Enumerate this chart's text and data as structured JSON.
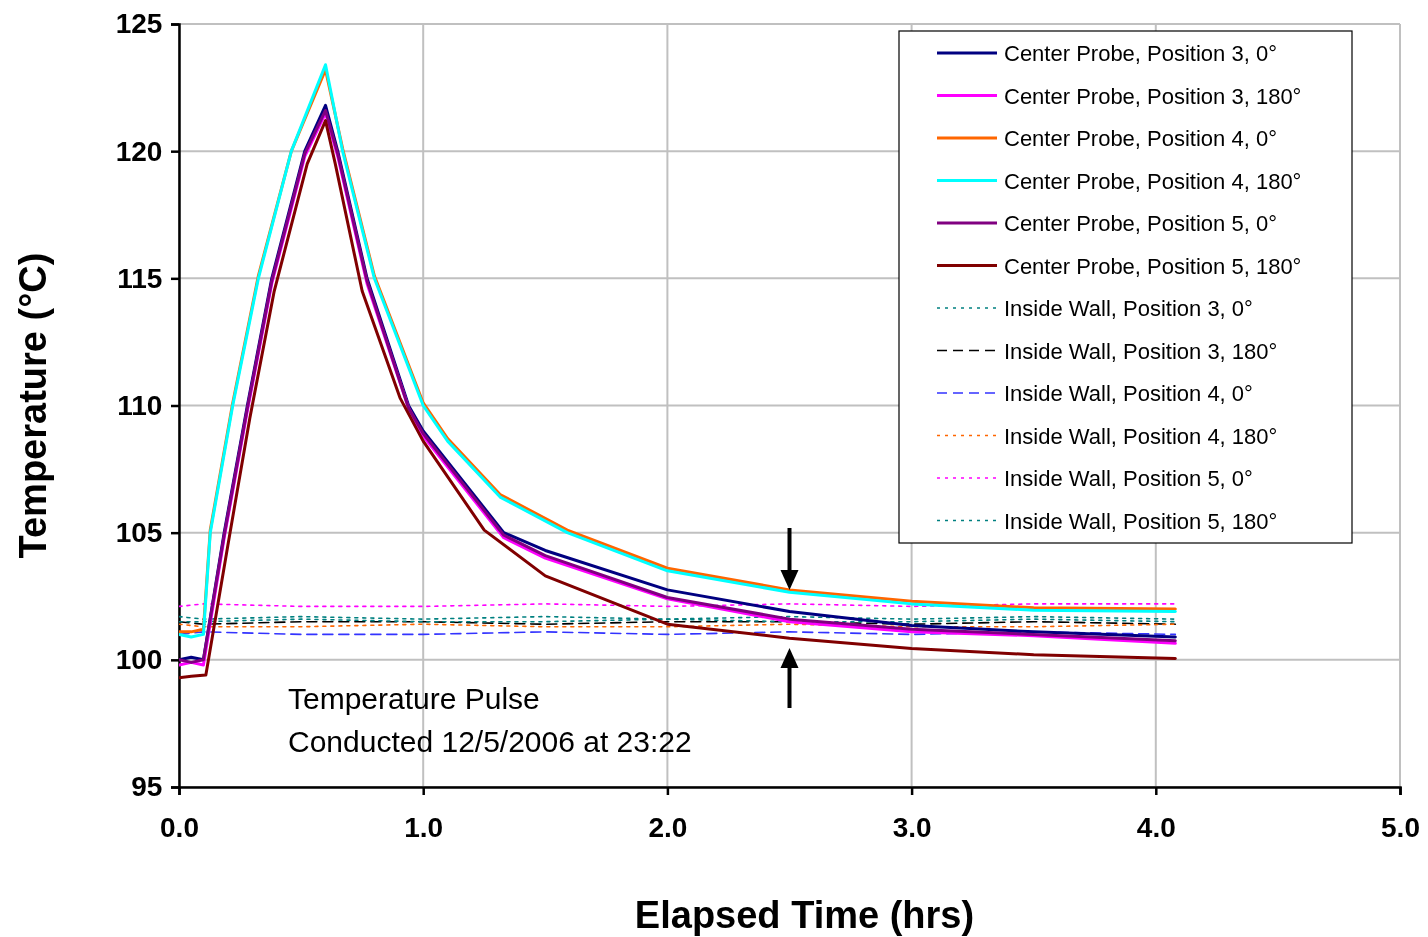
{
  "chart_data": {
    "type": "line",
    "xlabel": "Elapsed Time (hrs)",
    "ylabel": "Temperature (°C)",
    "xlim": [
      0,
      5
    ],
    "xticks": [
      {
        "value": 0,
        "label": "0.0"
      },
      {
        "value": 1,
        "label": "1.0"
      },
      {
        "value": 2,
        "label": "2.0"
      },
      {
        "value": 3,
        "label": "3.0"
      },
      {
        "value": 4,
        "label": "4.0"
      },
      {
        "value": 5,
        "label": "5.0"
      }
    ],
    "ylim": [
      95,
      125
    ],
    "yticks": [
      95,
      100,
      105,
      110,
      115,
      120,
      125
    ],
    "grid": true,
    "legend": "top right",
    "annotations": [
      "Temperature Pulse",
      "Conducted 12/5/2006 at 23:22"
    ],
    "series": [
      {
        "name": "Center Probe, Position 3, 0°",
        "color": "#000080",
        "line_style": "solid",
        "x": [
          0,
          0.05,
          0.1,
          0.185,
          0.28,
          0.38,
          0.515,
          0.6,
          0.65,
          0.77,
          0.94,
          1.0,
          1.33,
          1.5,
          2.0,
          2.5,
          3.0,
          3.5,
          4.08
        ],
        "values": [
          100.0,
          100.1,
          100.0,
          105,
          110,
          115,
          120,
          121.8,
          120,
          115,
          110,
          109.0,
          105.0,
          104.3,
          102.75,
          101.9,
          101.35,
          101.1,
          100.9
        ]
      },
      {
        "name": "Center Probe, Position 3, 180°",
        "color": "#ff00ff",
        "line_style": "solid",
        "x": [
          0,
          0.05,
          0.1,
          0.185,
          0.28,
          0.38,
          0.515,
          0.6,
          0.65,
          0.77,
          0.94,
          1.0,
          1.33,
          1.5,
          2.0,
          2.5,
          3.0,
          3.5,
          4.08
        ],
        "values": [
          99.8,
          99.9,
          99.8,
          104.8,
          109.8,
          114.8,
          119.8,
          121.5,
          119.8,
          114.8,
          109.9,
          108.8,
          104.8,
          104.0,
          102.4,
          101.5,
          101.1,
          100.95,
          100.65
        ]
      },
      {
        "name": "Center Probe, Position 4, 0°",
        "color": "#ff6600",
        "line_style": "solid",
        "x": [
          0,
          0.05,
          0.1,
          0.128,
          0.22,
          0.325,
          0.46,
          0.6,
          0.67,
          0.8,
          1.0,
          1.1,
          1.315,
          1.59,
          2.0,
          2.5,
          3.0,
          3.5,
          4.08
        ],
        "values": [
          101.1,
          101.1,
          101.2,
          105.1,
          110.1,
          115.1,
          120,
          123.2,
          120.1,
          115.1,
          110.1,
          108.7,
          106.5,
          105.1,
          103.6,
          102.75,
          102.3,
          102.05,
          102.0
        ]
      },
      {
        "name": "Center Probe, Position 4, 180°",
        "color": "#00ffff",
        "line_style": "solid",
        "x": [
          0,
          0.05,
          0.1,
          0.128,
          0.22,
          0.325,
          0.46,
          0.6,
          0.67,
          0.8,
          1.0,
          1.1,
          1.315,
          1.59,
          2.0,
          2.5,
          3.0,
          3.5,
          4.08
        ],
        "values": [
          101.0,
          100.9,
          101.0,
          105,
          110,
          115,
          120,
          123.4,
          120,
          115,
          110,
          108.6,
          106.4,
          105.0,
          103.5,
          102.66,
          102.2,
          101.95,
          101.9
        ]
      },
      {
        "name": "Center Probe, Position 5, 0°",
        "color": "#800080",
        "line_style": "solid",
        "x": [
          0,
          0.05,
          0.1,
          0.185,
          0.28,
          0.38,
          0.515,
          0.6,
          0.65,
          0.77,
          0.94,
          1.0,
          1.33,
          1.5,
          2.0,
          2.5,
          3.0,
          3.5,
          4.08
        ],
        "values": [
          100.0,
          99.9,
          100.0,
          104.9,
          109.9,
          114.9,
          119.9,
          121.6,
          119.9,
          114.9,
          109.9,
          108.9,
          104.9,
          104.1,
          102.45,
          101.6,
          101.2,
          101.0,
          100.75
        ]
      },
      {
        "name": "Center Probe, Position 5, 180°",
        "color": "#800000",
        "line_style": "solid",
        "x": [
          0,
          0.05,
          0.11,
          0.2,
          0.29,
          0.39,
          0.525,
          0.6,
          0.64,
          0.75,
          0.905,
          1.0,
          1.25,
          1.5,
          2.0,
          2.5,
          3.0,
          3.5,
          4.08
        ],
        "values": [
          99.3,
          99.35,
          99.4,
          104.5,
          109.5,
          114.5,
          119.5,
          121.2,
          119.5,
          114.5,
          110.3,
          108.6,
          105.1,
          103.3,
          101.4,
          100.85,
          100.45,
          100.2,
          100.05
        ]
      },
      {
        "name": "Inside Wall, Position 3, 0°",
        "color": "#008080",
        "line_style": "dotted",
        "x": [
          0,
          0.1,
          0.5,
          1.0,
          1.5,
          2.0,
          2.5,
          3.0,
          3.5,
          4.08
        ],
        "values": [
          101.7,
          101.6,
          101.7,
          101.6,
          101.7,
          101.6,
          101.7,
          101.6,
          101.7,
          101.6
        ]
      },
      {
        "name": "Inside Wall, Position 3, 180°",
        "color": "#000000",
        "line_style": "dashed",
        "x": [
          0,
          0.1,
          0.5,
          1.0,
          1.5,
          2.0,
          2.5,
          3.0,
          3.5,
          4.08
        ],
        "values": [
          101.5,
          101.4,
          101.5,
          101.5,
          101.4,
          101.5,
          101.5,
          101.4,
          101.5,
          101.4
        ]
      },
      {
        "name": "Inside Wall, Position 4, 0°",
        "color": "#3333ff",
        "line_style": "dashed",
        "x": [
          0,
          0.1,
          0.5,
          1.0,
          1.5,
          2.0,
          2.5,
          3.0,
          3.5,
          4.08
        ],
        "values": [
          101.0,
          101.1,
          101.0,
          101.0,
          101.1,
          101.0,
          101.1,
          101.0,
          101.1,
          101.0
        ]
      },
      {
        "name": "Inside Wall, Position 4, 180°",
        "color": "#ff6600",
        "line_style": "dotted",
        "x": [
          0,
          0.1,
          0.5,
          1.0,
          1.5,
          2.0,
          2.5,
          3.0,
          3.5,
          4.08
        ],
        "values": [
          101.4,
          101.3,
          101.3,
          101.4,
          101.3,
          101.3,
          101.4,
          101.3,
          101.3,
          101.4
        ]
      },
      {
        "name": "Inside Wall, Position 5, 0°",
        "color": "#ff00ff",
        "line_style": "dotted",
        "x": [
          0,
          0.1,
          0.5,
          1.0,
          1.5,
          2.0,
          2.5,
          3.0,
          3.5,
          4.08
        ],
        "values": [
          102.1,
          102.2,
          102.1,
          102.1,
          102.2,
          102.1,
          102.2,
          102.1,
          102.2,
          102.2
        ]
      },
      {
        "name": "Inside Wall, Position 5, 180°",
        "color": "#008080",
        "line_style": "dotted",
        "x": [
          0,
          0.1,
          0.5,
          1.0,
          1.5,
          2.0,
          2.5,
          3.0,
          3.5,
          4.08
        ],
        "values": [
          101.5,
          101.5,
          101.6,
          101.5,
          101.5,
          101.6,
          101.5,
          101.5,
          101.6,
          101.5
        ]
      }
    ]
  }
}
